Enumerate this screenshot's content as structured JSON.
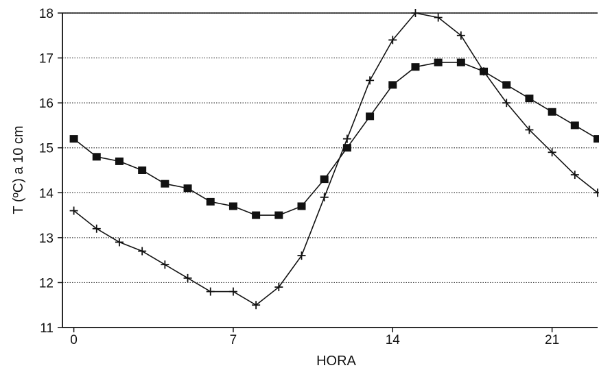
{
  "chart_data": {
    "type": "line",
    "title": "",
    "xlabel": "HORA",
    "ylabel": "T (ºC)  a 10 cm",
    "xlim": [
      -0.5,
      23
    ],
    "ylim": [
      11,
      18
    ],
    "x_ticks": [
      0,
      7,
      14,
      21
    ],
    "y_ticks": [
      11,
      12,
      13,
      14,
      15,
      16,
      17,
      18
    ],
    "grid": "horizontal-dotted",
    "legend": "none",
    "series": [
      {
        "marker": "square",
        "color": "#111111",
        "x": [
          0,
          1,
          2,
          3,
          4,
          5,
          6,
          7,
          8,
          9,
          10,
          11,
          12,
          13,
          14,
          15,
          16,
          17,
          18,
          19,
          20,
          21,
          22,
          23
        ],
        "y": [
          15.2,
          14.8,
          14.7,
          14.5,
          14.2,
          14.1,
          13.8,
          13.7,
          13.5,
          13.5,
          13.7,
          14.3,
          15.0,
          15.7,
          16.4,
          16.8,
          16.9,
          16.9,
          16.7,
          16.4,
          16.1,
          15.8,
          15.5,
          15.2
        ]
      },
      {
        "marker": "plus",
        "color": "#111111",
        "x": [
          0,
          1,
          2,
          3,
          4,
          5,
          6,
          7,
          8,
          9,
          10,
          11,
          12,
          13,
          14,
          15,
          16,
          17,
          18,
          19,
          20,
          21,
          22,
          23
        ],
        "y": [
          13.6,
          13.2,
          12.9,
          12.7,
          12.4,
          12.1,
          11.8,
          11.8,
          11.5,
          11.9,
          12.6,
          13.9,
          15.2,
          16.5,
          17.4,
          18.0,
          17.9,
          17.5,
          16.7,
          16.0,
          15.4,
          14.9,
          14.4,
          14.0
        ]
      }
    ]
  }
}
